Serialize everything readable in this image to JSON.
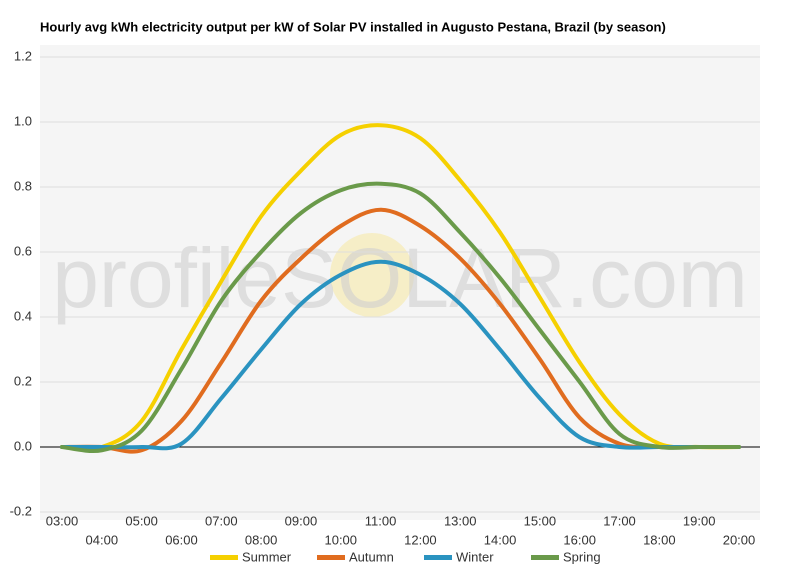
{
  "chart_data": {
    "type": "line",
    "title": "Hourly avg kWh electricity output per kW of Solar PV installed in Augusto Pestana, Brazil (by season)",
    "watermark": "profileSOLAR.com",
    "categories": [
      "03:00",
      "04:00",
      "05:00",
      "06:00",
      "07:00",
      "08:00",
      "09:00",
      "10:00",
      "11:00",
      "12:00",
      "13:00",
      "14:00",
      "15:00",
      "16:00",
      "17:00",
      "18:00",
      "19:00",
      "20:00"
    ],
    "series": [
      {
        "name": "Summer",
        "color": "#f5d000",
        "values": [
          0,
          0,
          0.08,
          0.3,
          0.51,
          0.71,
          0.85,
          0.96,
          0.99,
          0.95,
          0.82,
          0.66,
          0.46,
          0.26,
          0.1,
          0.01,
          0,
          0
        ]
      },
      {
        "name": "Autumn",
        "color": "#e06c1f",
        "values": [
          0,
          0,
          -0.01,
          0.08,
          0.26,
          0.45,
          0.58,
          0.68,
          0.73,
          0.68,
          0.58,
          0.44,
          0.27,
          0.09,
          0.01,
          0,
          0,
          0
        ]
      },
      {
        "name": "Winter",
        "color": "#2a93c0",
        "values": [
          0,
          0,
          0,
          0.01,
          0.15,
          0.3,
          0.44,
          0.53,
          0.57,
          0.53,
          0.44,
          0.3,
          0.15,
          0.03,
          0,
          0,
          0,
          0
        ]
      },
      {
        "name": "Spring",
        "color": "#6a9a4a",
        "values": [
          0,
          -0.01,
          0.05,
          0.24,
          0.45,
          0.6,
          0.72,
          0.79,
          0.81,
          0.78,
          0.66,
          0.52,
          0.36,
          0.2,
          0.04,
          0,
          0,
          0
        ]
      }
    ],
    "ylim": [
      -0.2,
      1.2
    ],
    "yticks": [
      -0.2,
      {
        "value": 0,
        "label": "0.0"
      },
      0.2,
      0.4,
      0.6,
      0.8,
      {
        "value": 1,
        "label": "1.0"
      },
      1.2
    ],
    "grid": true
  }
}
